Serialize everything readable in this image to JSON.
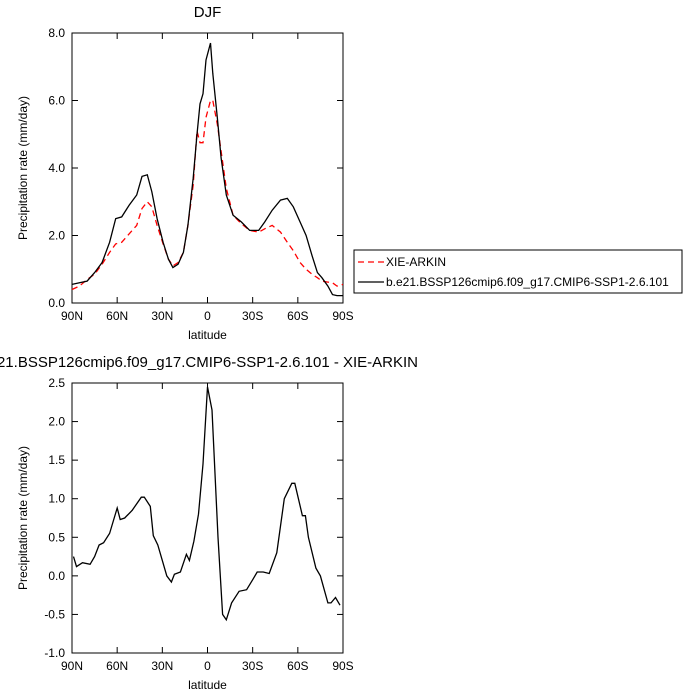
{
  "chart_data": [
    {
      "type": "line",
      "title": "DJF",
      "xlabel": "latitude",
      "ylabel": "Precipitation rate (mm/day)",
      "x": [
        90,
        85,
        80,
        75,
        70,
        65,
        61,
        57,
        52,
        47,
        43.5,
        40,
        37,
        33.5,
        29.5,
        26,
        23,
        19.5,
        16,
        13,
        9.5,
        7,
        5,
        3,
        1,
        -2,
        -3.5,
        -6.5,
        -9,
        -12.5,
        -17,
        -22.5,
        -28,
        -34,
        -38,
        -43,
        -48.5,
        -53,
        -57,
        -61.5,
        -65.5,
        -69.5,
        -73,
        -76,
        -80,
        -83,
        -86,
        -90
      ],
      "series": [
        {
          "name": "XIE-ARKIN",
          "color": "#ff0000",
          "dash": "dashed",
          "values": [
            0.4,
            0.5,
            0.7,
            0.85,
            1.15,
            1.5,
            1.75,
            1.8,
            2.05,
            2.3,
            2.8,
            3.0,
            2.85,
            2.3,
            1.75,
            1.3,
            1.1,
            1.2,
            1.5,
            2.3,
            3.5,
            5.1,
            4.75,
            4.75,
            5.5,
            6.0,
            6.0,
            5.3,
            4.5,
            3.4,
            2.6,
            2.35,
            2.15,
            2.1,
            2.2,
            2.3,
            2.1,
            1.8,
            1.55,
            1.2,
            1.0,
            0.85,
            0.75,
            0.65,
            0.62,
            0.6,
            0.5,
            0.55
          ]
        },
        {
          "name": "b.e21.BSSP126cmip6.f09_g17.CMIP6-SSP1-2.6.101",
          "color": "#000000",
          "dash": "solid",
          "values": [
            0.55,
            0.6,
            0.65,
            0.9,
            1.2,
            1.8,
            2.5,
            2.55,
            2.9,
            3.2,
            3.75,
            3.8,
            3.3,
            2.5,
            1.8,
            1.3,
            1.05,
            1.15,
            1.5,
            2.3,
            3.7,
            5.0,
            5.9,
            6.2,
            7.2,
            7.7,
            6.8,
            5.5,
            4.3,
            3.2,
            2.6,
            2.4,
            2.15,
            2.15,
            2.4,
            2.75,
            3.05,
            3.1,
            2.85,
            2.4,
            2.0,
            1.4,
            0.9,
            0.75,
            0.5,
            0.25,
            0.22,
            0.22
          ]
        }
      ],
      "xlim": [
        90,
        -90
      ],
      "xticks": [
        {
          "value": 90,
          "label": "90N"
        },
        {
          "value": 60,
          "label": "60N"
        },
        {
          "value": 30,
          "label": "30N"
        },
        0,
        {
          "value": -30,
          "label": "30S"
        },
        {
          "value": -60,
          "label": "60S"
        },
        {
          "value": -90,
          "label": "90S"
        }
      ],
      "ylim": [
        0,
        8
      ],
      "yticks": [
        {
          "value": 0,
          "label": "0.0"
        },
        {
          "value": 2,
          "label": "2.0"
        },
        {
          "value": 4,
          "label": "4.0"
        },
        {
          "value": 6,
          "label": "6.0"
        },
        {
          "value": 8,
          "label": "8.0"
        }
      ],
      "grid": false,
      "legend": "right"
    },
    {
      "type": "line",
      "title": "21.BSSP126cmip6.f09_g17.CMIP6-SSP1-2.6.101 - XIE-ARKIN",
      "xlabel": "latitude",
      "ylabel": "Precipitation rate (mm/day)",
      "x": [
        89,
        87,
        83,
        78,
        75,
        72,
        69,
        65,
        60,
        58,
        55,
        50,
        44,
        42,
        38,
        36,
        33,
        30,
        27,
        24,
        22,
        18,
        14,
        12,
        9,
        6,
        3,
        0,
        -3,
        -7,
        -10,
        -12.5,
        -16,
        -21,
        -26,
        -30,
        -33,
        -37,
        -41,
        -46,
        -51,
        -56,
        -58,
        -63,
        -65,
        -67,
        -72,
        -75,
        -80,
        -82,
        -85,
        -88
      ],
      "values": [
        0.25,
        0.12,
        0.17,
        0.15,
        0.25,
        0.4,
        0.43,
        0.55,
        0.88,
        0.73,
        0.75,
        0.85,
        1.02,
        1.02,
        0.9,
        0.52,
        0.4,
        0.2,
        0.0,
        -0.08,
        0.02,
        0.05,
        0.28,
        0.2,
        0.45,
        0.8,
        1.45,
        2.45,
        2.15,
        0.5,
        -0.5,
        -0.57,
        -0.35,
        -0.2,
        -0.18,
        -0.05,
        0.05,
        0.05,
        0.03,
        0.3,
        1.0,
        1.2,
        1.2,
        0.78,
        0.78,
        0.5,
        0.1,
        0.0,
        -0.35,
        -0.35,
        -0.28,
        -0.38
      ],
      "color": "#000000",
      "xlim": [
        90,
        -90
      ],
      "xticks": [
        {
          "value": 90,
          "label": "90N"
        },
        {
          "value": 60,
          "label": "60N"
        },
        {
          "value": 30,
          "label": "30N"
        },
        0,
        {
          "value": -30,
          "label": "30S"
        },
        {
          "value": -60,
          "label": "60S"
        },
        {
          "value": -90,
          "label": "90S"
        }
      ],
      "ylim": [
        -1,
        2.5
      ],
      "yticks": [
        {
          "value": -1,
          "label": "-1.0"
        },
        -0.5,
        {
          "value": 0,
          "label": "0.0"
        },
        0.5,
        {
          "value": 1,
          "label": "1.0"
        },
        1.5,
        {
          "value": 2,
          "label": "2.0"
        },
        2.5
      ],
      "grid": false
    }
  ]
}
